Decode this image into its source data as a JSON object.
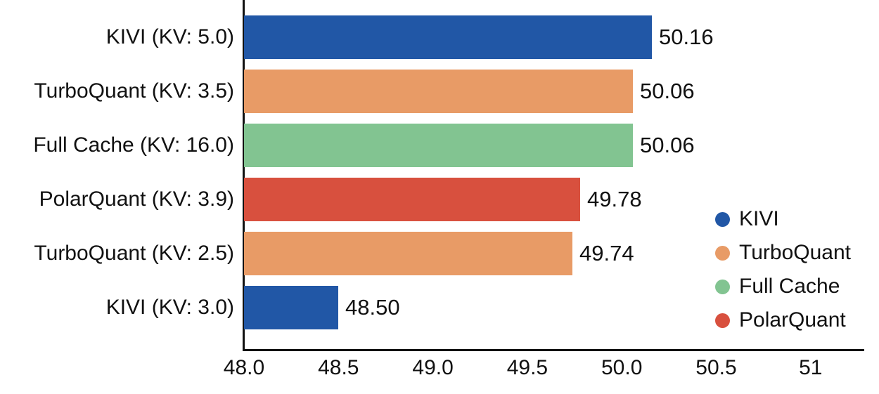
{
  "chart_data": {
    "type": "bar",
    "orientation": "horizontal",
    "title": "",
    "xlabel": "",
    "ylabel": "",
    "grid": false,
    "background_color": "#ffffff",
    "axis_color": "#111111",
    "text_color": "#111111",
    "categories": [
      "KIVI (KV: 5.0)",
      "TurboQuant (KV: 3.5)",
      "Full Cache (KV: 16.0)",
      "PolarQuant (KV: 3.9)",
      "TurboQuant (KV: 2.5)",
      "KIVI (KV: 3.0)"
    ],
    "values": [
      50.16,
      50.06,
      50.06,
      49.78,
      49.74,
      48.5
    ],
    "value_labels": [
      "50.16",
      "50.06",
      "50.06",
      "49.78",
      "49.74",
      "48.50"
    ],
    "bar_series": [
      "KIVI",
      "TurboQuant",
      "Full Cache",
      "PolarQuant",
      "TurboQuant",
      "KIVI"
    ],
    "series_colors": {
      "KIVI": "#2157A6",
      "TurboQuant": "#E89B66",
      "Full Cache": "#82C491",
      "PolarQuant": "#D8503E"
    },
    "xlim": [
      48.0,
      51.28
    ],
    "x_tick_values": [
      48.0,
      48.5,
      49.0,
      49.5,
      50.0,
      50.5,
      51.0
    ],
    "x_tick_labels": [
      "48.0",
      "48.5",
      "49.0",
      "49.5",
      "50.0",
      "50.5",
      "51"
    ],
    "legend": {
      "position": "right-middle",
      "entries": [
        {
          "label": "KIVI",
          "color": "#2157A6"
        },
        {
          "label": "TurboQuant",
          "color": "#E89B66"
        },
        {
          "label": "Full Cache",
          "color": "#82C491"
        },
        {
          "label": "PolarQuant",
          "color": "#D8503E"
        }
      ]
    }
  }
}
